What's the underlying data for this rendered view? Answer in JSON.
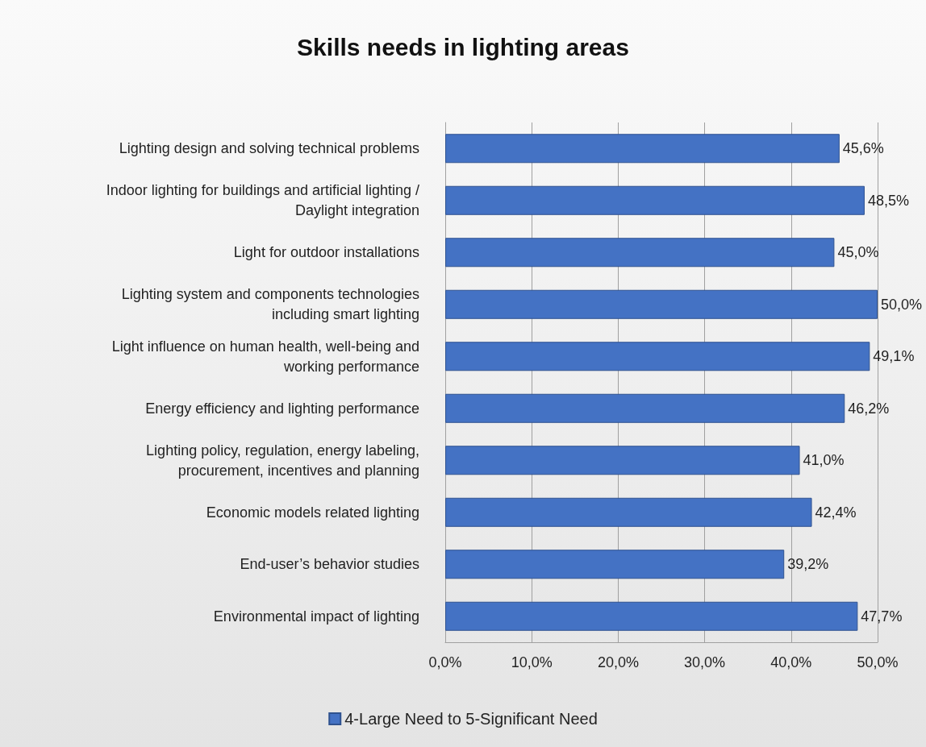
{
  "chart_data": {
    "type": "bar",
    "title": "Skills needs in lighting areas",
    "orientation": "horizontal",
    "categories": [
      "Lighting design and solving technical problems",
      "Indoor lighting for buildings and artificial lighting /\nDaylight integration",
      "Light for outdoor installations",
      "Lighting system and components technologies\nincluding smart lighting",
      "Light influence on human health, well-being and\nworking performance",
      "Energy efficiency and lighting performance",
      "Lighting policy, regulation, energy labeling,\nprocurement, incentives and planning",
      "Economic models related lighting",
      "End-user’s behavior studies",
      "Environmental impact of lighting"
    ],
    "series": [
      {
        "name": "4-Large Need to 5-Significant Need",
        "color": "#4472c4",
        "values": [
          45.6,
          48.5,
          45.0,
          50.0,
          49.1,
          46.2,
          41.0,
          42.4,
          39.2,
          47.7
        ],
        "value_labels": [
          "45,6%",
          "48,5%",
          "45,0%",
          "50,0%",
          "49,1%",
          "46,2%",
          "41,0%",
          "42,4%",
          "39,2%",
          "47,7%"
        ]
      }
    ],
    "xlim": [
      0,
      50
    ],
    "xticks": [
      {
        "value": 0,
        "label": "0,0%"
      },
      {
        "value": 10,
        "label": "10,0%"
      },
      {
        "value": 20,
        "label": "20,0%"
      },
      {
        "value": 30,
        "label": "30,0%"
      },
      {
        "value": 40,
        "label": "40,0%"
      },
      {
        "value": 50,
        "label": "50,0%"
      }
    ],
    "grid": "x",
    "legend": "bottom"
  }
}
